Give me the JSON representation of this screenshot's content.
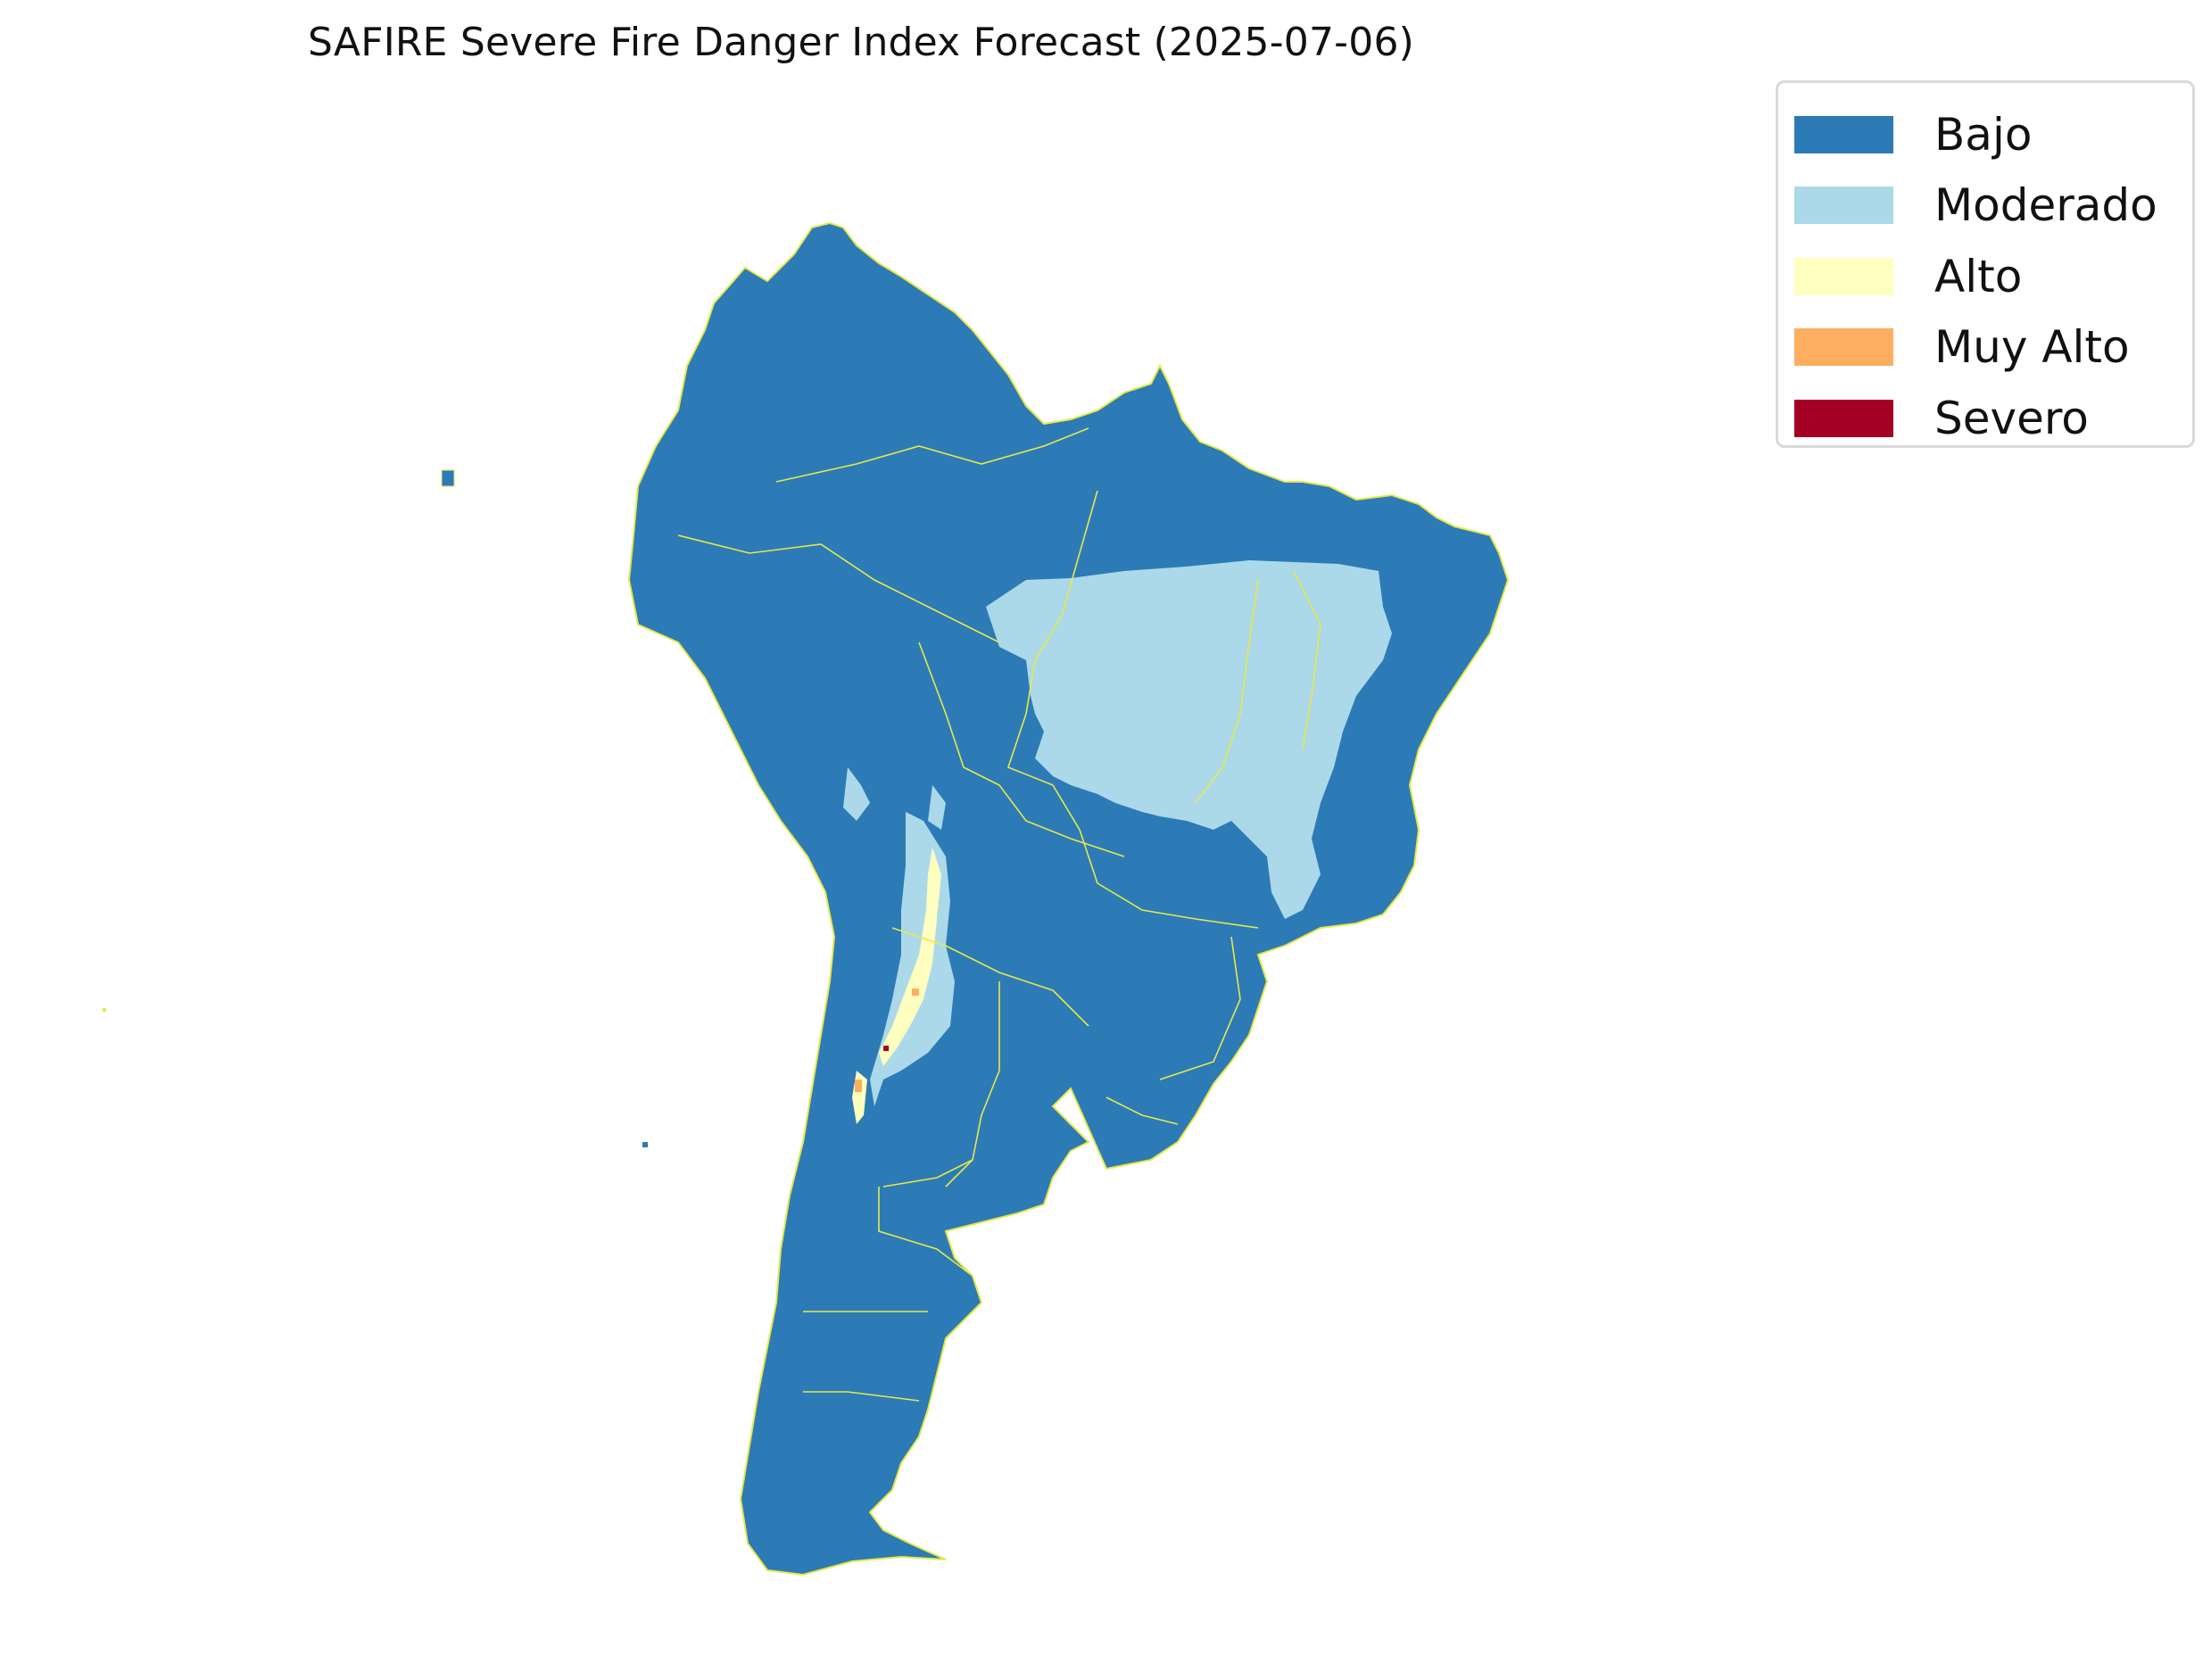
{
  "title": "SAFIRE Severe Fire Danger Index Forecast (2025-07-06)",
  "legend": {
    "items": [
      {
        "label": "Bajo",
        "color": "#2c7bb6"
      },
      {
        "label": "Moderado",
        "color": "#abd9e9"
      },
      {
        "label": "Alto",
        "color": "#ffffbf"
      },
      {
        "label": "Muy Alto",
        "color": "#fdae61"
      },
      {
        "label": "Severo",
        "color": "#a50026"
      }
    ]
  },
  "map": {
    "region": "South America",
    "boundary_color": "#e8e84a",
    "background": "#ffffff"
  }
}
